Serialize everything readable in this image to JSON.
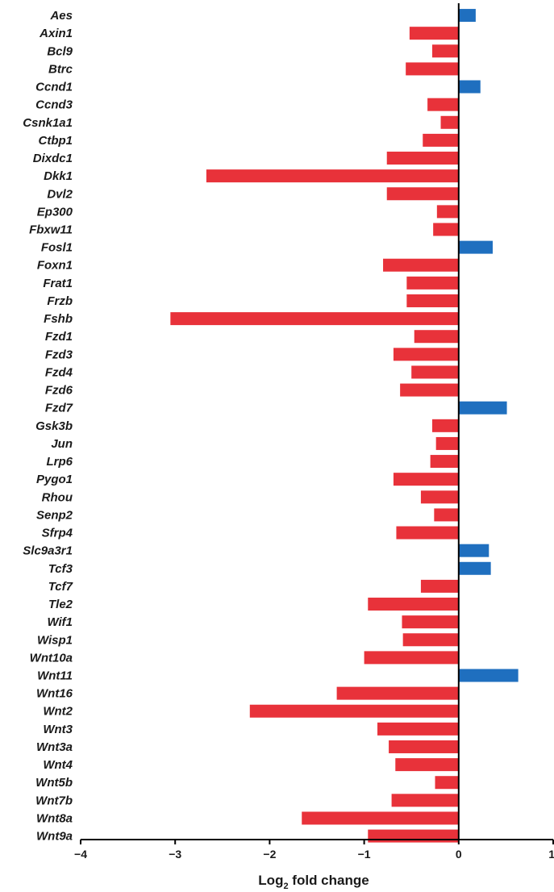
{
  "chart_data": {
    "type": "bar",
    "orientation": "horizontal",
    "categories": [
      "Aes",
      "Axin1",
      "Bcl9",
      "Btrc",
      "Ccnd1",
      "Ccnd3",
      "Csnk1a1",
      "Ctbp1",
      "Dixdc1",
      "Dkk1",
      "Dvl2",
      "Ep300",
      "Fbxw11",
      "Fosl1",
      "Foxn1",
      "Frat1",
      "Frzb",
      "Fshb",
      "Fzd1",
      "Fzd3",
      "Fzd4",
      "Fzd6",
      "Fzd7",
      "Gsk3b",
      "Jun",
      "Lrp6",
      "Pygo1",
      "Rhou",
      "Senp2",
      "Sfrp4",
      "Slc9a3r1",
      "Tcf3",
      "Tcf7",
      "Tle2",
      "Wif1",
      "Wisp1",
      "Wnt10a",
      "Wnt11",
      "Wnt16",
      "Wnt2",
      "Wnt3",
      "Wnt3a",
      "Wnt4",
      "Wnt5b",
      "Wnt7b",
      "Wnt8a",
      "Wnt9a"
    ],
    "values": [
      0.18,
      -0.52,
      -0.28,
      -0.56,
      0.23,
      -0.33,
      -0.19,
      -0.38,
      -0.76,
      -2.67,
      -0.76,
      -0.23,
      -0.27,
      0.36,
      -0.8,
      -0.55,
      -0.55,
      -3.05,
      -0.47,
      -0.69,
      -0.5,
      -0.62,
      0.51,
      -0.28,
      -0.24,
      -0.3,
      -0.69,
      -0.4,
      -0.26,
      -0.66,
      0.32,
      0.34,
      -0.4,
      -0.96,
      -0.6,
      -0.59,
      -1.0,
      0.63,
      -1.29,
      -2.21,
      -0.86,
      -0.74,
      -0.67,
      -0.25,
      -0.71,
      -1.66,
      -0.96
    ],
    "colors": {
      "positive": "#1f6fbf",
      "negative": "#e8323a"
    },
    "xlabel_main": "Log",
    "xlabel_sub": "2",
    "xlabel_rest": " fold change",
    "xlim": [
      -4,
      1
    ],
    "xticks": [
      -4,
      -3,
      -2,
      -1,
      0,
      1
    ],
    "xtick_labels": [
      "−4",
      "−3",
      "−2",
      "−1",
      "0",
      "1"
    ],
    "grid": false,
    "legend": "none"
  }
}
